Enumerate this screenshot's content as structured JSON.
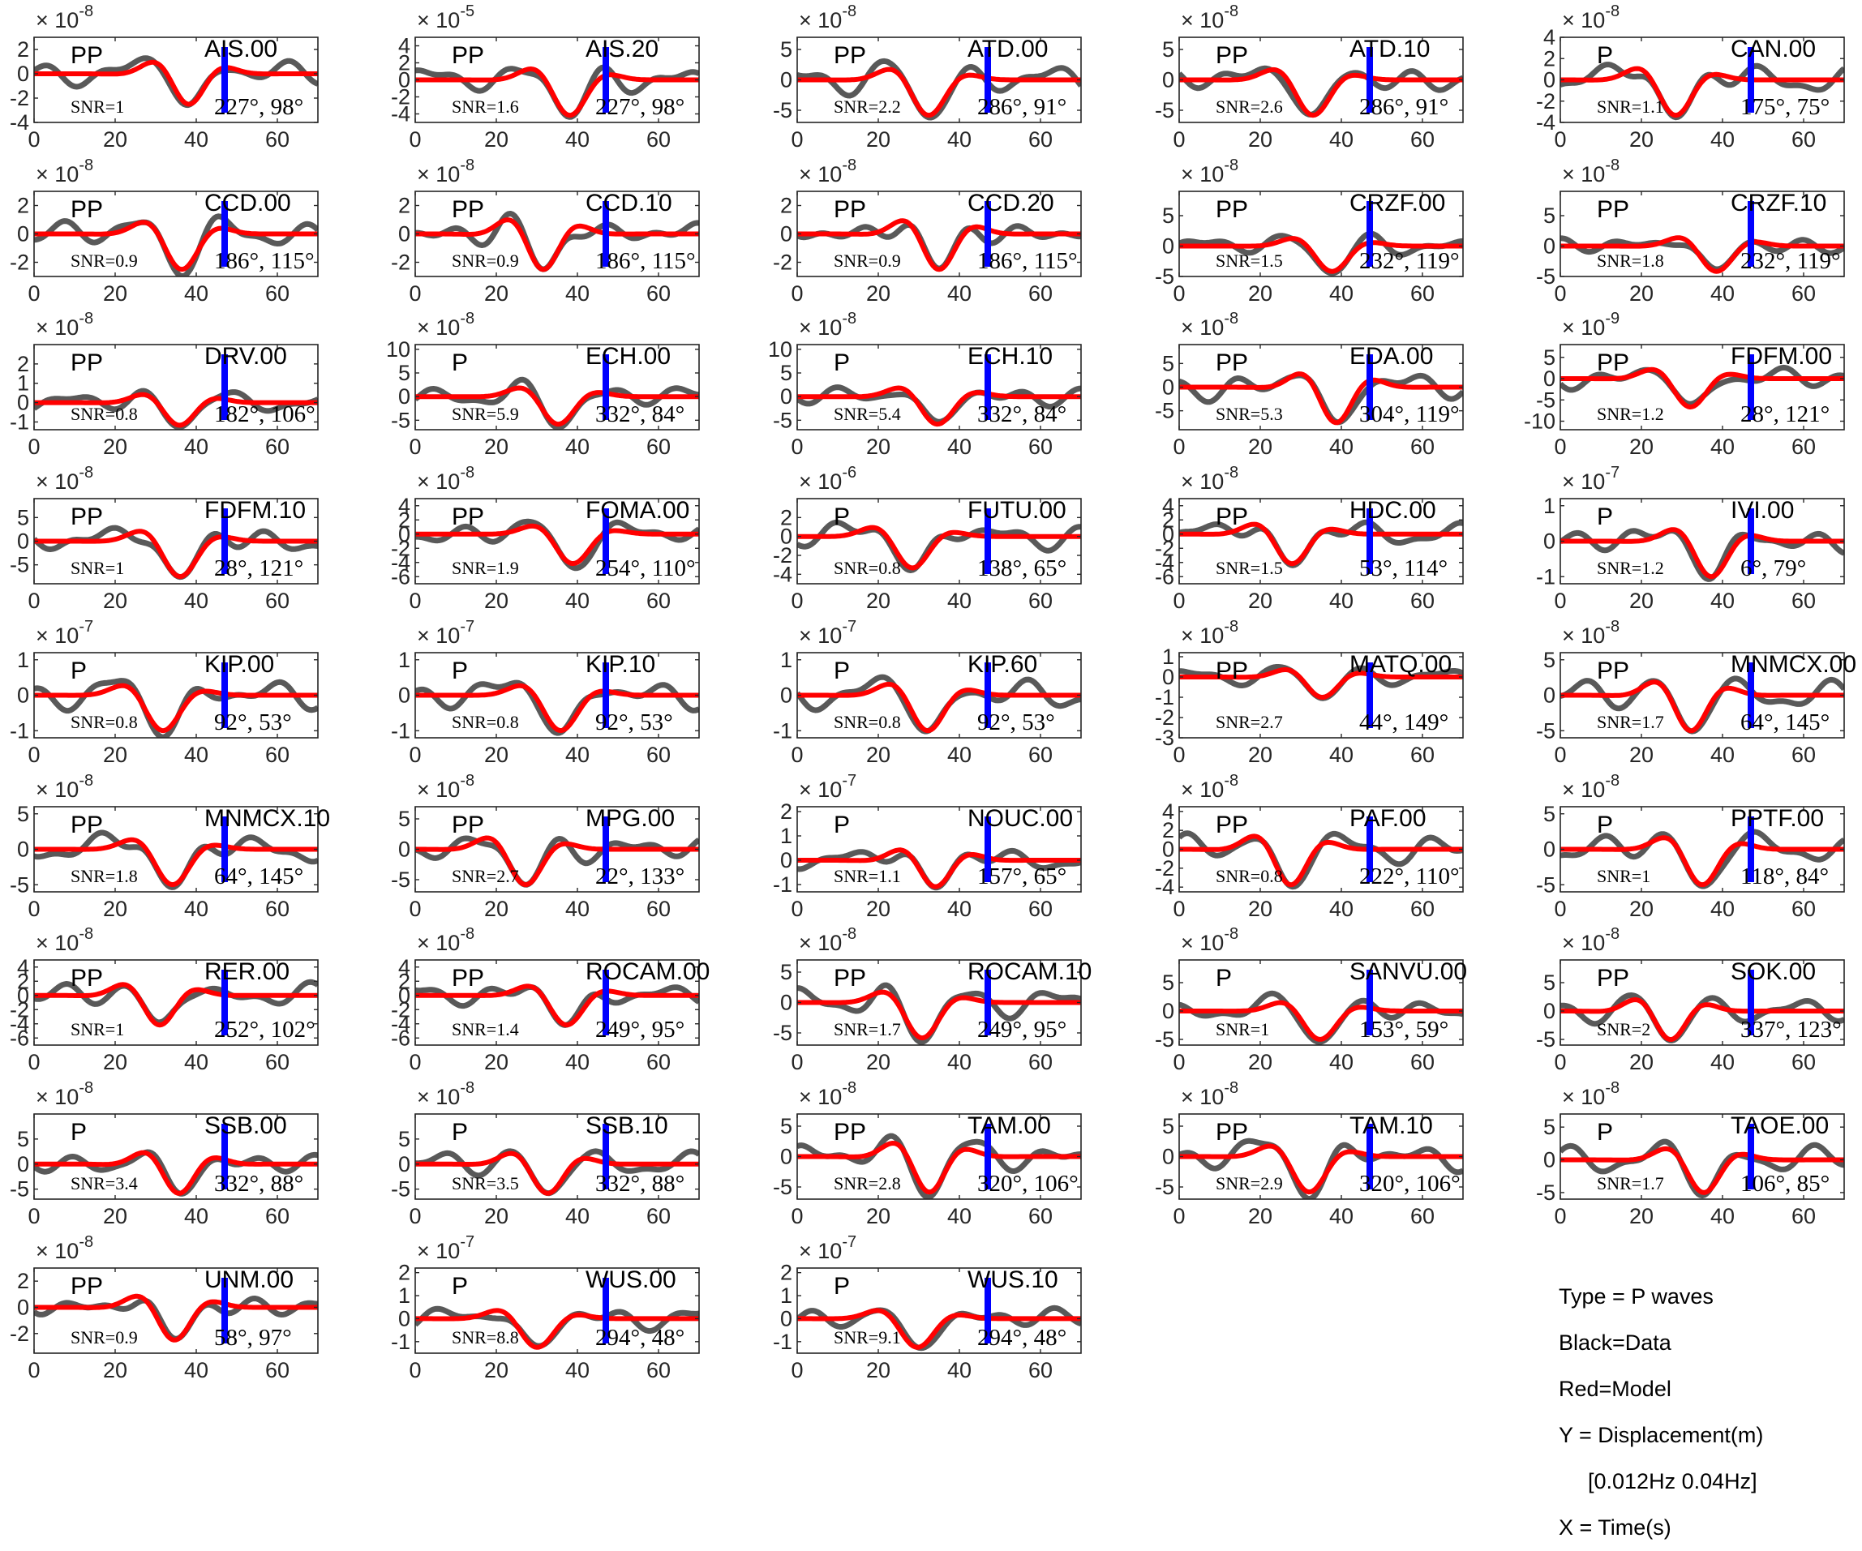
{
  "legend": {
    "type_line": "Type = P waves",
    "data_line": "Black=Data",
    "model_line": "Red=Model",
    "y_line": "Y = Displacement(m)",
    "band_line": "[0.012Hz 0.04Hz]",
    "x_line": "X = Time(s)"
  },
  "colors": {
    "data": "#595959",
    "model": "#ff0000",
    "marker": "#0000ff"
  },
  "chart_data": {
    "type": "line",
    "grid": false,
    "xlim": [
      0,
      70
    ],
    "xticks": [
      0,
      20,
      40,
      60
    ],
    "marker_time": 47,
    "panels": [
      {
        "station": "AIS.00",
        "phase": "PP",
        "snr": "SNR=1",
        "angles": "227°, 98°",
        "exponent": "-8",
        "ylim": [
          -4,
          3
        ],
        "yticks": [
          2,
          0,
          -2,
          -4
        ]
      },
      {
        "station": "AIS.20",
        "phase": "PP",
        "snr": "SNR=1.6",
        "angles": "227°, 98°",
        "exponent": "-5",
        "ylim": [
          -5,
          5
        ],
        "yticks": [
          4,
          2,
          0,
          -2,
          -4
        ]
      },
      {
        "station": "ATD.00",
        "phase": "PP",
        "snr": "SNR=2.2",
        "angles": "286°, 91°",
        "exponent": "-8",
        "ylim": [
          -7,
          7
        ],
        "yticks": [
          5,
          0,
          -5
        ]
      },
      {
        "station": "ATD.10",
        "phase": "PP",
        "snr": "SNR=2.6",
        "angles": "286°, 91°",
        "exponent": "-8",
        "ylim": [
          -7,
          7
        ],
        "yticks": [
          5,
          0,
          -5
        ]
      },
      {
        "station": "CAN.00",
        "phase": "P",
        "snr": "SNR=1.1",
        "angles": "175°, 75°",
        "exponent": "-8",
        "ylim": [
          -4,
          4
        ],
        "yticks": [
          4,
          2,
          0,
          -2,
          -4
        ]
      },
      {
        "station": "CCD.00",
        "phase": "PP",
        "snr": "SNR=0.9",
        "angles": "186°, 115°",
        "exponent": "-8",
        "ylim": [
          -3,
          3
        ],
        "yticks": [
          2,
          0,
          -2
        ]
      },
      {
        "station": "CCD.10",
        "phase": "PP",
        "snr": "SNR=0.9",
        "angles": "186°, 115°",
        "exponent": "-8",
        "ylim": [
          -3,
          3
        ],
        "yticks": [
          2,
          0,
          -2
        ]
      },
      {
        "station": "CCD.20",
        "phase": "PP",
        "snr": "SNR=0.9",
        "angles": "186°, 115°",
        "exponent": "-8",
        "ylim": [
          -3,
          3
        ],
        "yticks": [
          2,
          0,
          -2
        ]
      },
      {
        "station": "CRZF.00",
        "phase": "PP",
        "snr": "SNR=1.5",
        "angles": "232°, 119°",
        "exponent": "-8",
        "ylim": [
          -5,
          9
        ],
        "yticks": [
          5,
          0,
          -5
        ]
      },
      {
        "station": "CRZF.10",
        "phase": "PP",
        "snr": "SNR=1.8",
        "angles": "232°, 119°",
        "exponent": "-8",
        "ylim": [
          -5,
          9
        ],
        "yticks": [
          5,
          0,
          -5
        ]
      },
      {
        "station": "DRV.00",
        "phase": "PP",
        "snr": "SNR=0.8",
        "angles": "182°, 106°",
        "exponent": "-8",
        "ylim": [
          -1.4,
          3
        ],
        "yticks": [
          2,
          1,
          0,
          -1
        ]
      },
      {
        "station": "ECH.00",
        "phase": "P",
        "snr": "SNR=5.9",
        "angles": "332°, 84°",
        "exponent": "-8",
        "ylim": [
          -7,
          11
        ],
        "yticks": [
          10,
          5,
          0,
          -5
        ]
      },
      {
        "station": "ECH.10",
        "phase": "P",
        "snr": "SNR=5.4",
        "angles": "332°, 84°",
        "exponent": "-8",
        "ylim": [
          -7,
          11
        ],
        "yticks": [
          10,
          5,
          0,
          -5
        ]
      },
      {
        "station": "EDA.00",
        "phase": "PP",
        "snr": "SNR=5.3",
        "angles": "304°, 119°",
        "exponent": "-8",
        "ylim": [
          -9,
          9
        ],
        "yticks": [
          5,
          0,
          -5
        ]
      },
      {
        "station": "FDFM.00",
        "phase": "PP",
        "snr": "SNR=1.2",
        "angles": "28°, 121°",
        "exponent": "-9",
        "ylim": [
          -12,
          8
        ],
        "yticks": [
          5,
          0,
          -5,
          -10
        ]
      },
      {
        "station": "FDFM.10",
        "phase": "PP",
        "snr": "SNR=1",
        "angles": "28°, 121°",
        "exponent": "-8",
        "ylim": [
          -9,
          9
        ],
        "yticks": [
          5,
          0,
          -5
        ]
      },
      {
        "station": "FOMA.00",
        "phase": "PP",
        "snr": "SNR=1.9",
        "angles": "254°, 110°",
        "exponent": "-8",
        "ylim": [
          -7,
          5
        ],
        "yticks": [
          4,
          2,
          0,
          -2,
          -4,
          -6
        ]
      },
      {
        "station": "FUTU.00",
        "phase": "P",
        "snr": "SNR=0.8",
        "angles": "138°, 65°",
        "exponent": "-6",
        "ylim": [
          -5,
          4
        ],
        "yticks": [
          2,
          0,
          -2,
          -4
        ]
      },
      {
        "station": "HDC.00",
        "phase": "PP",
        "snr": "SNR=1.5",
        "angles": "53°, 114°",
        "exponent": "-8",
        "ylim": [
          -7,
          5
        ],
        "yticks": [
          4,
          2,
          0,
          -2,
          -4,
          -6
        ]
      },
      {
        "station": "IVI.00",
        "phase": "P",
        "snr": "SNR=1.2",
        "angles": "6°, 79°",
        "exponent": "-7",
        "ylim": [
          -1.2,
          1.2
        ],
        "yticks": [
          1,
          0,
          -1
        ]
      },
      {
        "station": "KIP.00",
        "phase": "P",
        "snr": "SNR=0.8",
        "angles": "92°, 53°",
        "exponent": "-7",
        "ylim": [
          -1.2,
          1.2
        ],
        "yticks": [
          1,
          0,
          -1
        ]
      },
      {
        "station": "KIP.10",
        "phase": "P",
        "snr": "SNR=0.8",
        "angles": "92°, 53°",
        "exponent": "-7",
        "ylim": [
          -1.2,
          1.2
        ],
        "yticks": [
          1,
          0,
          -1
        ]
      },
      {
        "station": "KIP.60",
        "phase": "P",
        "snr": "SNR=0.8",
        "angles": "92°, 53°",
        "exponent": "-7",
        "ylim": [
          -1.2,
          1.2
        ],
        "yticks": [
          1,
          0,
          -1
        ]
      },
      {
        "station": "MATQ.00",
        "phase": "PP",
        "snr": "SNR=2.7",
        "angles": "44°, 149°",
        "exponent": "-8",
        "ylim": [
          -3,
          1.2
        ],
        "yticks": [
          1,
          0,
          -1,
          -2,
          -3
        ]
      },
      {
        "station": "MNMCX.00",
        "phase": "PP",
        "snr": "SNR=1.7",
        "angles": "64°, 145°",
        "exponent": "-8",
        "ylim": [
          -6,
          6
        ],
        "yticks": [
          5,
          0,
          -5
        ]
      },
      {
        "station": "MNMCX.10",
        "phase": "PP",
        "snr": "SNR=1.8",
        "angles": "64°, 145°",
        "exponent": "-8",
        "ylim": [
          -6,
          6
        ],
        "yticks": [
          5,
          0,
          -5
        ]
      },
      {
        "station": "MPG.00",
        "phase": "PP",
        "snr": "SNR=2.7",
        "angles": "22°, 133°",
        "exponent": "-8",
        "ylim": [
          -7,
          7
        ],
        "yticks": [
          5,
          0,
          -5
        ]
      },
      {
        "station": "NOUC.00",
        "phase": "P",
        "snr": "SNR=1.1",
        "angles": "157°, 65°",
        "exponent": "-7",
        "ylim": [
          -1.3,
          2.2
        ],
        "yticks": [
          2,
          1,
          0,
          -1
        ]
      },
      {
        "station": "PAF.00",
        "phase": "PP",
        "snr": "SNR=0.8",
        "angles": "222°, 110°",
        "exponent": "-8",
        "ylim": [
          -4.5,
          4.5
        ],
        "yticks": [
          4,
          2,
          0,
          -2,
          -4
        ]
      },
      {
        "station": "PPTF.00",
        "phase": "P",
        "snr": "SNR=1",
        "angles": "118°, 84°",
        "exponent": "-8",
        "ylim": [
          -6,
          6
        ],
        "yticks": [
          5,
          0,
          -5
        ]
      },
      {
        "station": "RER.00",
        "phase": "PP",
        "snr": "SNR=1",
        "angles": "252°, 102°",
        "exponent": "-8",
        "ylim": [
          -7,
          5
        ],
        "yticks": [
          4,
          2,
          0,
          -2,
          -4,
          -6
        ]
      },
      {
        "station": "ROCAM.00",
        "phase": "PP",
        "snr": "SNR=1.4",
        "angles": "249°, 95°",
        "exponent": "-8",
        "ylim": [
          -7,
          5
        ],
        "yticks": [
          4,
          2,
          0,
          -2,
          -4,
          -6
        ]
      },
      {
        "station": "ROCAM.10",
        "phase": "PP",
        "snr": "SNR=1.7",
        "angles": "249°, 95°",
        "exponent": "-8",
        "ylim": [
          -7,
          7
        ],
        "yticks": [
          5,
          0,
          -5
        ]
      },
      {
        "station": "SANVU.00",
        "phase": "P",
        "snr": "SNR=1",
        "angles": "153°, 59°",
        "exponent": "-8",
        "ylim": [
          -6,
          9
        ],
        "yticks": [
          5,
          0,
          -5
        ]
      },
      {
        "station": "SOK.00",
        "phase": "PP",
        "snr": "SNR=2",
        "angles": "337°, 123°",
        "exponent": "-8",
        "ylim": [
          -6,
          9
        ],
        "yticks": [
          5,
          0,
          -5
        ]
      },
      {
        "station": "SSB.00",
        "phase": "P",
        "snr": "SNR=3.4",
        "angles": "332°, 88°",
        "exponent": "-8",
        "ylim": [
          -7,
          10
        ],
        "yticks": [
          5,
          0,
          -5
        ]
      },
      {
        "station": "SSB.10",
        "phase": "P",
        "snr": "SNR=3.5",
        "angles": "332°, 88°",
        "exponent": "-8",
        "ylim": [
          -7,
          10
        ],
        "yticks": [
          5,
          0,
          -5
        ]
      },
      {
        "station": "TAM.00",
        "phase": "PP",
        "snr": "SNR=2.8",
        "angles": "320°, 106°",
        "exponent": "-8",
        "ylim": [
          -7,
          7
        ],
        "yticks": [
          5,
          0,
          -5
        ]
      },
      {
        "station": "TAM.10",
        "phase": "PP",
        "snr": "SNR=2.9",
        "angles": "320°, 106°",
        "exponent": "-8",
        "ylim": [
          -7,
          7
        ],
        "yticks": [
          5,
          0,
          -5
        ]
      },
      {
        "station": "TAOE.00",
        "phase": "P",
        "snr": "SNR=1.7",
        "angles": "106°, 85°",
        "exponent": "-8",
        "ylim": [
          -6,
          7
        ],
        "yticks": [
          5,
          0,
          -5
        ]
      },
      {
        "station": "UNM.00",
        "phase": "PP",
        "snr": "SNR=0.9",
        "angles": "58°, 97°",
        "exponent": "-8",
        "ylim": [
          -3.5,
          3
        ],
        "yticks": [
          2,
          0,
          -2
        ]
      },
      {
        "station": "WUS.00",
        "phase": "P",
        "snr": "SNR=8.8",
        "angles": "294°, 48°",
        "exponent": "-7",
        "ylim": [
          -1.5,
          2.2
        ],
        "yticks": [
          2,
          1,
          0,
          -1
        ]
      },
      {
        "station": "WUS.10",
        "phase": "P",
        "snr": "SNR=9.1",
        "angles": "294°, 48°",
        "exponent": "-7",
        "ylim": [
          -1.5,
          2.2
        ],
        "yticks": [
          2,
          1,
          0,
          -1
        ]
      }
    ]
  }
}
